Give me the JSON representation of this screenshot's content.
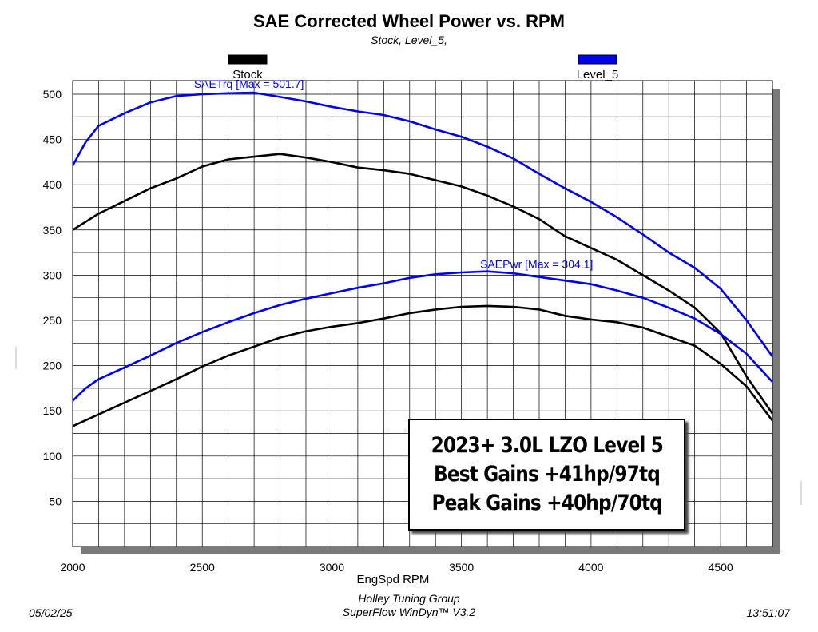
{
  "chart_data": {
    "type": "line",
    "title": "SAE Corrected Wheel Power vs. RPM",
    "subtitle": "Stock, Level_5,",
    "xlabel": "EngSpd RPM",
    "ylabel": "",
    "xlim": [
      2000,
      4700
    ],
    "ylim": [
      0,
      515
    ],
    "x_ticks": [
      2000,
      2500,
      3000,
      3500,
      4000,
      4500
    ],
    "y_ticks": [
      50,
      100,
      150,
      200,
      250,
      300,
      350,
      400,
      450,
      500
    ],
    "grid": true,
    "legend": [
      {
        "name": "Stock",
        "color": "#000000"
      },
      {
        "name": "Level_5",
        "color": "#0000ee"
      }
    ],
    "series": [
      {
        "name": "Stock SAETrq",
        "group": "Stock",
        "color": "#000000",
        "x": [
          2000,
          2100,
          2200,
          2300,
          2400,
          2500,
          2600,
          2700,
          2800,
          2900,
          3000,
          3100,
          3200,
          3300,
          3400,
          3500,
          3600,
          3700,
          3800,
          3900,
          4000,
          4100,
          4200,
          4300,
          4400,
          4500,
          4600,
          4700
        ],
        "values": [
          350,
          368,
          382,
          396,
          407,
          420,
          428,
          431,
          434,
          430,
          425,
          419,
          416,
          412,
          405,
          398,
          388,
          376,
          362,
          343,
          330,
          317,
          300,
          283,
          264,
          236,
          188,
          147
        ]
      },
      {
        "name": "Level_5 SAETrq",
        "group": "Level_5",
        "color": "#0000ee",
        "x": [
          2000,
          2050,
          2100,
          2200,
          2300,
          2400,
          2500,
          2600,
          2700,
          2800,
          2900,
          3000,
          3100,
          3200,
          3300,
          3400,
          3500,
          3600,
          3700,
          3800,
          3900,
          4000,
          4100,
          4200,
          4300,
          4400,
          4500,
          4600,
          4700
        ],
        "values": [
          421,
          447,
          465,
          479,
          491,
          498,
          500,
          501,
          501.7,
          497,
          492,
          486,
          481,
          477,
          470,
          461,
          453,
          442,
          429,
          412,
          396,
          381,
          364,
          345,
          325,
          308,
          285,
          250,
          210
        ]
      },
      {
        "name": "Stock SAEPwr",
        "group": "Stock",
        "color": "#000000",
        "x": [
          2000,
          2100,
          2200,
          2300,
          2400,
          2500,
          2600,
          2700,
          2800,
          2900,
          3000,
          3100,
          3200,
          3300,
          3400,
          3500,
          3600,
          3700,
          3800,
          3900,
          4000,
          4100,
          4200,
          4300,
          4400,
          4500,
          4600,
          4700
        ],
        "values": [
          133,
          146,
          159,
          172,
          185,
          199,
          211,
          221,
          231,
          238,
          243,
          247,
          252,
          258,
          262,
          265,
          266,
          265,
          262,
          255,
          251,
          248,
          242,
          232,
          222,
          202,
          177,
          139
        ]
      },
      {
        "name": "Level_5 SAEPwr",
        "group": "Level_5",
        "color": "#0000ee",
        "x": [
          2000,
          2050,
          2100,
          2200,
          2300,
          2400,
          2500,
          2600,
          2700,
          2800,
          2900,
          3000,
          3100,
          3200,
          3300,
          3400,
          3500,
          3600,
          3700,
          3800,
          3900,
          4000,
          4100,
          4200,
          4300,
          4400,
          4500,
          4600,
          4700
        ],
        "values": [
          161,
          175,
          185,
          198,
          211,
          225,
          237,
          248,
          258,
          267,
          274,
          280,
          286,
          291,
          297,
          301,
          303,
          304.1,
          302,
          298,
          294,
          290,
          283,
          275,
          264,
          252,
          235,
          213,
          182
        ]
      }
    ],
    "annotations": {
      "trq_label": "SAETrq [Max = 501.7]",
      "pwr_label": "SAEPwr [Max = 304.1]"
    }
  },
  "annotation_box": {
    "line1": "2023+ 3.0L LZO Level 5",
    "line2": "Best Gains +41hp/97tq",
    "line3": "Peak Gains +40hp/70tq"
  },
  "footer": {
    "date": "05/02/25",
    "company": "Holley Tuning Group",
    "software": "SuperFlow WinDyn™ V3.2",
    "time": "13:51:07"
  }
}
